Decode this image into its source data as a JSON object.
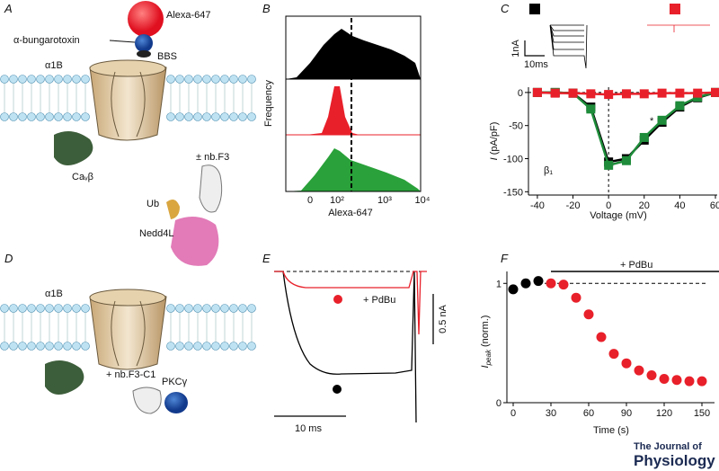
{
  "chart_data": [
    {
      "type": "line",
      "x": [
        -40,
        -30,
        -20,
        -10,
        0,
        10,
        20,
        30,
        40,
        50,
        60
      ],
      "series": [
        {
          "color": "#000000",
          "values": [
            0,
            0,
            -1,
            -22,
            -105,
            -100,
            -72,
            -45,
            -22,
            -8,
            0
          ]
        },
        {
          "color": "#1e8c3a",
          "values": [
            0,
            0,
            -1,
            -25,
            -110,
            -103,
            -68,
            -42,
            -20,
            -7,
            0
          ]
        },
        {
          "color": "#e8202a",
          "values": [
            0,
            -1,
            -1,
            -2,
            -3,
            -2,
            -2,
            -1,
            -1,
            -1,
            0
          ]
        }
      ],
      "xlim": [
        -45,
        61
      ],
      "ylim": [
        -155,
        8
      ],
      "xticks": [
        -40,
        -20,
        0,
        20,
        40,
        60
      ],
      "yticks": [
        0,
        -50,
        -100,
        -150
      ],
      "xlabel": "Voltage (mV)",
      "ylabel_symbol": "I",
      "ylabel_rest": " (pA/pF)",
      "annotations": [
        "*",
        "β₁"
      ]
    },
    {
      "type": "scatter",
      "series": [
        {
          "color": "#000000",
          "x": [
            0,
            10,
            20
          ],
          "values": [
            0.95,
            1.0,
            1.02
          ]
        },
        {
          "color": "#e8202a",
          "x": [
            30,
            40,
            50,
            60,
            70,
            80,
            90,
            100,
            110,
            120,
            130,
            140,
            150
          ],
          "values": [
            1.0,
            0.99,
            0.88,
            0.74,
            0.55,
            0.41,
            0.33,
            0.27,
            0.23,
            0.2,
            0.19,
            0.18,
            0.18
          ]
        }
      ],
      "xlim": [
        -5,
        160
      ],
      "ylim": [
        0,
        1.1
      ],
      "xticks": [
        0,
        30,
        60,
        90,
        120,
        150
      ],
      "yticks": [
        0,
        1
      ],
      "xlabel": "Time (s)",
      "ylabel_symbol": "I",
      "ylabel_sub": "peak",
      "ylabel_rest": " (norm.)",
      "annotations": [
        "+ PdBu"
      ]
    }
  ],
  "figure": {
    "panel_labels": [
      "A",
      "B",
      "C",
      "D",
      "E",
      "F"
    ],
    "panel_a": {
      "dye": "Alexa-647",
      "toxin": "α-bungarotoxin",
      "tag": "BBS",
      "channel": "α1B",
      "beta": "Caᵥβ",
      "nanobody": "± nb.F3",
      "ub": "Ub",
      "ligase": "Nedd4L"
    },
    "panel_b": {
      "ylabel": "Frequency",
      "xlabel": "Alexa-647",
      "ticks": [
        "0",
        "10²",
        "10³",
        "10⁴"
      ]
    },
    "panel_c_inset": {
      "current_scale": "1nA",
      "time_scale": "10ms"
    },
    "panel_d": {
      "channel": "α1B",
      "nanobody": "+ nb.F3-C1",
      "kinase": "PKCγ"
    },
    "panel_e": {
      "treatment": "+ PdBu",
      "current_scale": "0.5 nA",
      "time_scale": "10 ms"
    },
    "journal": {
      "line1": "The Journal of",
      "line2": "Physiology"
    }
  }
}
